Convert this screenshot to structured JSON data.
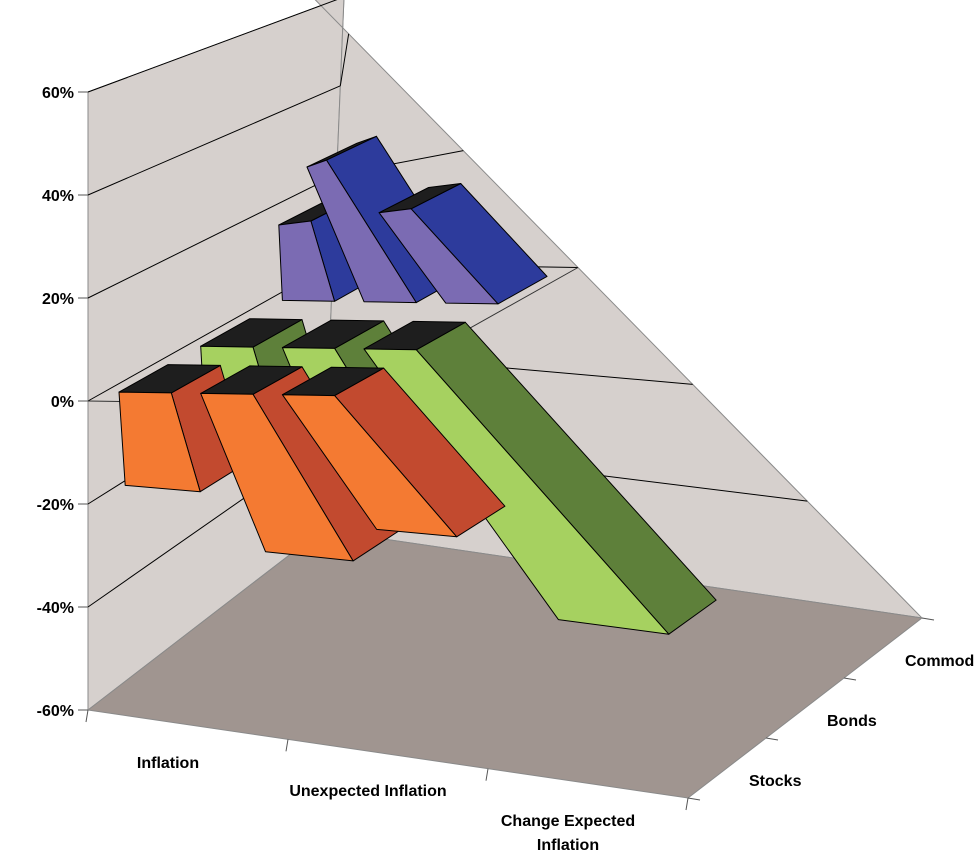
{
  "chart_data": {
    "type": "bar",
    "subtype": "3d-column",
    "title": "",
    "xlabel": "",
    "ylabel": "",
    "categories": [
      "Inflation",
      "Unexpected Inflation",
      "Change Expected Inflation"
    ],
    "category_lines": [
      [
        "Inflation"
      ],
      [
        "Unexpected Inflation"
      ],
      [
        "Change Expected",
        "Inflation"
      ]
    ],
    "series": [
      {
        "name": "Stocks",
        "values": [
          -18,
          -28,
          -22
        ]
      },
      {
        "name": "Bonds",
        "values": [
          -9,
          -27,
          -46
        ]
      },
      {
        "name": "Commodities",
        "values": [
          16,
          26,
          16
        ]
      }
    ],
    "ylim": [
      -60,
      60
    ],
    "yticks": [
      "-60%",
      "-40%",
      "-20%",
      "0%",
      "20%",
      "40%",
      "60%"
    ],
    "grid": true,
    "legend": "none (series labels on depth axis)",
    "colors": {
      "series_front": [
        "#f47a32",
        "#a6d160",
        "#7b6bb3"
      ],
      "series_side": [
        "#c24a2f",
        "#5e803a",
        "#2d3b9c"
      ],
      "bar_top": "#1e1e1e",
      "back_walls": "#d6d0cd",
      "floor": "#a09590",
      "gridline": "#000000"
    }
  }
}
